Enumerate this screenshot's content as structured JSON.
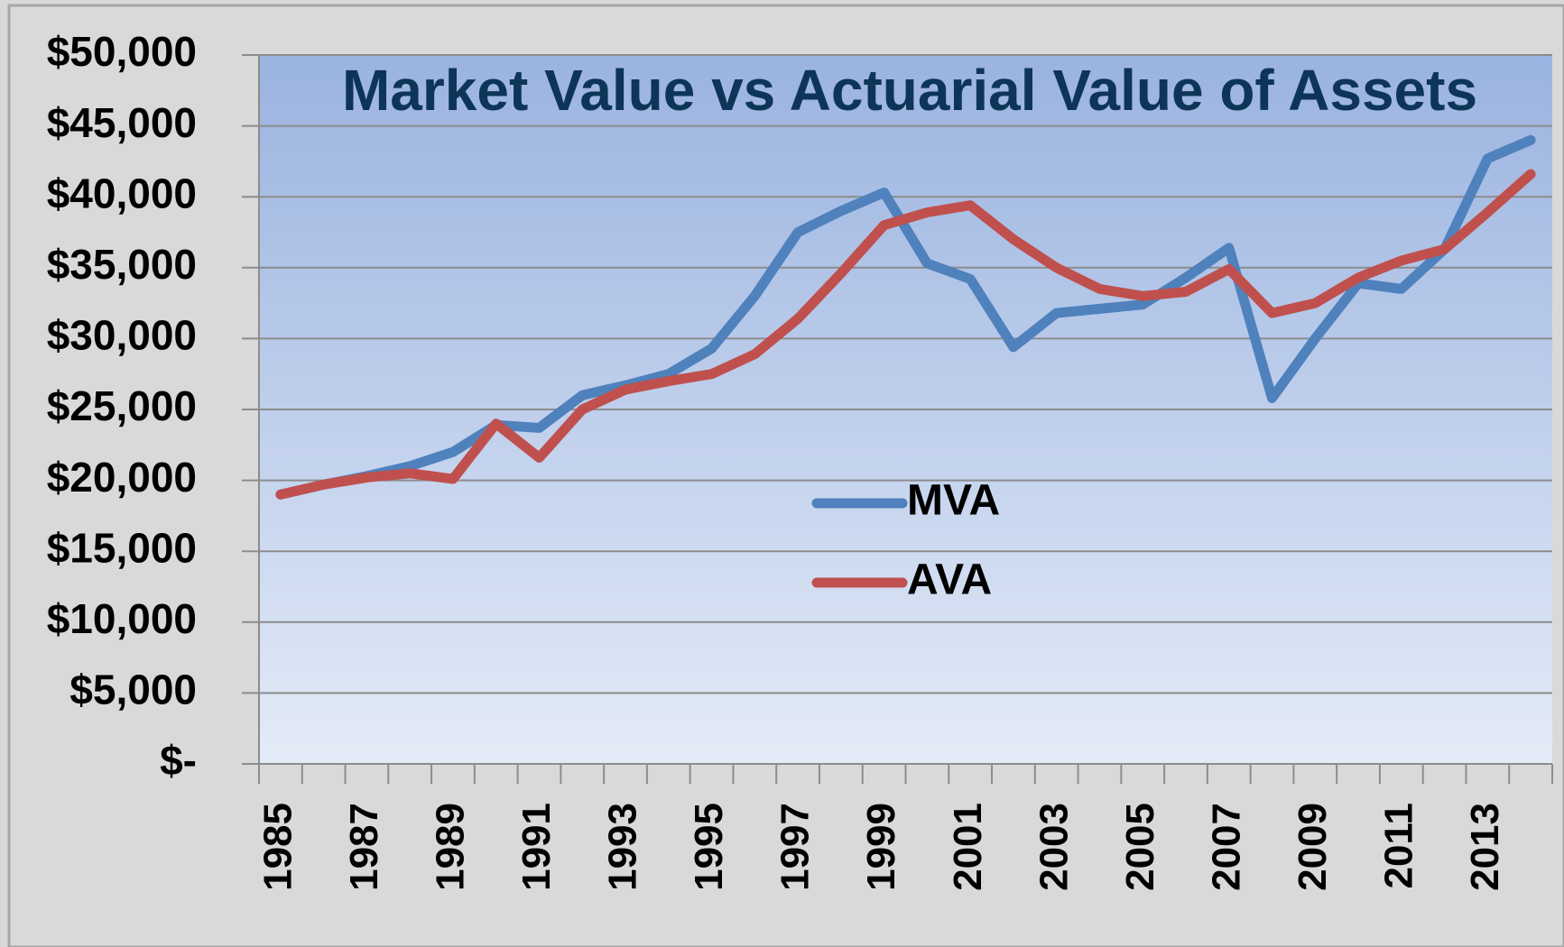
{
  "chart_data": {
    "type": "line",
    "title": "Market Value vs Actuarial Value of Assets",
    "categories": [
      "1985",
      null,
      "1987",
      null,
      "1989",
      null,
      "1991",
      null,
      "1993",
      null,
      "1995",
      null,
      "1997",
      null,
      "1999",
      null,
      "2001",
      null,
      "2003",
      null,
      "2005",
      null,
      "2007",
      null,
      "2009",
      null,
      "2011",
      null,
      "2013",
      null
    ],
    "series": [
      {
        "name": "MVA",
        "color": "#4f81bd",
        "values": [
          19000,
          19700,
          20300,
          21000,
          22000,
          23900,
          23700,
          26000,
          26700,
          27500,
          29300,
          33000,
          37500,
          39000,
          40300,
          35300,
          34200,
          29400,
          31800,
          32100,
          32400,
          34300,
          36400,
          25800,
          30000,
          33900,
          33500,
          36300,
          42700,
          44000
        ]
      },
      {
        "name": "AVA",
        "color": "#c0504d",
        "values": [
          19000,
          19700,
          20200,
          20500,
          20100,
          24000,
          21600,
          25000,
          26400,
          27000,
          27500,
          28900,
          31400,
          34600,
          38000,
          38900,
          39400,
          37000,
          35000,
          33500,
          33000,
          33300,
          34900,
          31800,
          32500,
          34300,
          35500,
          36300,
          38900,
          41600
        ]
      }
    ],
    "ylim": [
      0,
      50000
    ],
    "yticks": [
      {
        "value": 0,
        "label": "$-"
      },
      {
        "value": 5000,
        "label": "$5,000"
      },
      {
        "value": 10000,
        "label": "$10,000"
      },
      {
        "value": 15000,
        "label": "$15,000"
      },
      {
        "value": 20000,
        "label": "$20,000"
      },
      {
        "value": 25000,
        "label": "$25,000"
      },
      {
        "value": 30000,
        "label": "$30,000"
      },
      {
        "value": 35000,
        "label": "$35,000"
      },
      {
        "value": 40000,
        "label": "$40,000"
      },
      {
        "value": 45000,
        "label": "$45,000"
      },
      {
        "value": 50000,
        "label": "$50,000"
      }
    ],
    "grid": true
  }
}
